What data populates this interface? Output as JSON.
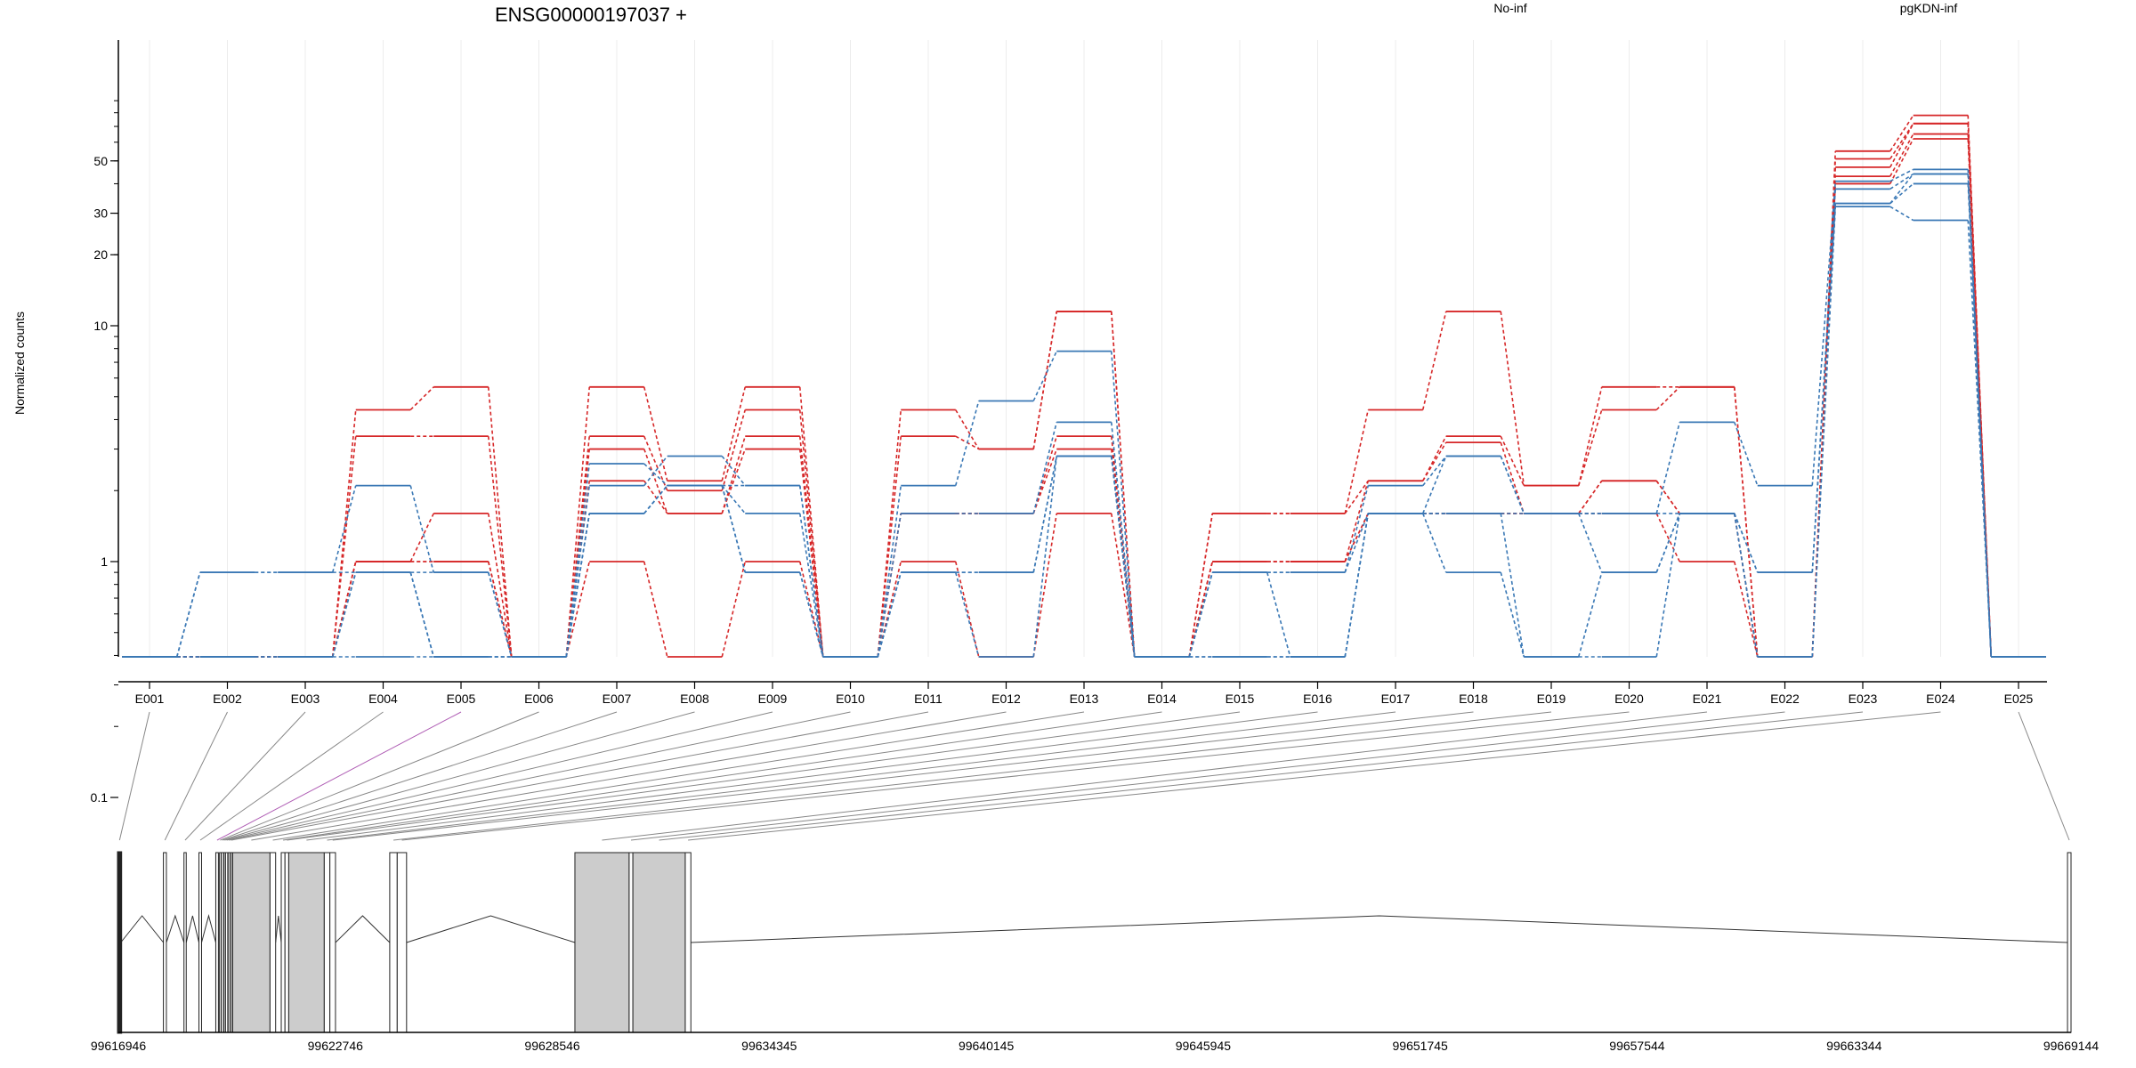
{
  "chart_data": {
    "type": "line",
    "title": "ENSG00000197037 +",
    "ylabel": "Normalized counts",
    "xlabel": "",
    "y_scale": "log",
    "y_ticks": [
      "0.1",
      "1",
      "10",
      "20",
      "30",
      "50"
    ],
    "categories": [
      "E001",
      "E002",
      "E003",
      "E004",
      "E005",
      "E006",
      "E007",
      "E008",
      "E009",
      "E010",
      "E011",
      "E012",
      "E013",
      "E014",
      "E015",
      "E016",
      "E017",
      "E018",
      "E019",
      "E020",
      "E021",
      "E022",
      "E023",
      "E024",
      "E025"
    ],
    "groups": [
      {
        "name": "No-inf",
        "color": "#d62728"
      },
      {
        "name": "pgKDN-inf",
        "color": "#3a78b5"
      }
    ],
    "series": [
      {
        "group": "No-inf",
        "values": [
          0,
          0,
          0,
          4.4,
          5.5,
          0,
          5.5,
          2.2,
          5.5,
          0,
          4.4,
          3.0,
          11.5,
          0,
          1.6,
          1.6,
          4.4,
          11.5,
          2.1,
          5.5,
          5.5,
          0,
          55,
          78,
          0
        ]
      },
      {
        "group": "No-inf",
        "values": [
          0,
          0,
          0,
          3.4,
          3.4,
          0,
          3.4,
          2.0,
          4.4,
          0,
          3.4,
          3.0,
          11.5,
          0,
          1.6,
          1.6,
          2.2,
          3.4,
          2.1,
          4.4,
          5.5,
          0,
          51,
          72,
          0
        ]
      },
      {
        "group": "No-inf",
        "values": [
          0,
          0,
          0,
          1.0,
          1.6,
          0,
          3.0,
          1.6,
          3.4,
          0,
          1.6,
          1.6,
          3.4,
          0,
          1.0,
          1.0,
          2.2,
          3.2,
          1.6,
          2.2,
          1.6,
          0,
          47,
          72,
          0
        ]
      },
      {
        "group": "No-inf",
        "values": [
          0,
          0,
          0,
          1.0,
          1.0,
          0,
          2.2,
          1.6,
          3.0,
          0,
          1.6,
          1.6,
          3.0,
          0,
          1.0,
          1.0,
          1.6,
          1.6,
          1.6,
          2.2,
          1.6,
          0,
          43,
          65,
          0
        ]
      },
      {
        "group": "No-inf",
        "values": [
          0,
          0,
          0,
          1.0,
          1.0,
          0,
          1.0,
          0,
          1.0,
          0,
          1.0,
          0,
          1.6,
          0,
          1.0,
          1.0,
          1.6,
          1.6,
          1.6,
          1.6,
          1.0,
          0,
          40,
          62,
          0
        ]
      },
      {
        "group": "pgKDN-inf",
        "values": [
          0,
          0.9,
          0.9,
          2.1,
          0.9,
          0,
          2.1,
          2.8,
          2.1,
          0,
          2.1,
          4.8,
          7.8,
          0,
          0.9,
          0.9,
          2.1,
          2.8,
          1.6,
          1.6,
          3.9,
          2.1,
          41,
          46,
          0
        ]
      },
      {
        "group": "pgKDN-inf",
        "values": [
          0,
          0.9,
          0.9,
          0.9,
          0.9,
          0,
          2.6,
          2.1,
          2.1,
          0,
          1.6,
          1.6,
          3.9,
          0,
          0.9,
          0.9,
          1.6,
          2.8,
          1.6,
          1.6,
          1.6,
          0.9,
          38,
          44,
          0
        ]
      },
      {
        "group": "pgKDN-inf",
        "values": [
          0,
          0,
          0,
          0.9,
          0,
          0,
          1.6,
          2.1,
          1.6,
          0,
          0.9,
          0.9,
          2.8,
          0,
          0.9,
          0,
          1.6,
          1.6,
          1.6,
          0.9,
          1.6,
          0.9,
          33,
          44,
          0
        ]
      },
      {
        "group": "pgKDN-inf",
        "values": [
          0,
          0,
          0,
          0.9,
          0,
          0,
          1.6,
          2.1,
          0.9,
          0,
          0.9,
          0.9,
          2.8,
          0,
          0,
          0,
          1.6,
          1.6,
          0,
          0.9,
          1.6,
          0,
          33,
          40,
          0
        ]
      },
      {
        "group": "pgKDN-inf",
        "values": [
          0,
          0,
          0,
          0,
          0,
          0,
          1.6,
          2.1,
          0.9,
          0,
          0.9,
          0,
          2.8,
          0,
          0,
          0,
          1.6,
          0.9,
          0,
          0,
          1.6,
          0,
          32,
          28,
          0
        ]
      }
    ],
    "genomic_axis": {
      "tick_labels": [
        "99616946",
        "99622746",
        "99628546",
        "99634345",
        "99640145",
        "99645945",
        "99651745",
        "99657544",
        "99663344",
        "99669144"
      ],
      "range": [
        99616946,
        99669144
      ]
    },
    "exons": [
      {
        "id": "E001",
        "start": 99616946,
        "end": 99617010
      },
      {
        "id": "E002",
        "start": 99618150,
        "end": 99618230
      },
      {
        "id": "E003",
        "start": 99618700,
        "end": 99618760
      },
      {
        "id": "E004",
        "start": 99619100,
        "end": 99619170
      },
      {
        "id": "E005",
        "start": 99619550,
        "end": 99619620
      },
      {
        "id": "E006",
        "start": 99619650,
        "end": 99619690
      },
      {
        "id": "E007",
        "start": 99619700,
        "end": 99619760
      },
      {
        "id": "E008",
        "start": 99619770,
        "end": 99619800
      },
      {
        "id": "E009",
        "start": 99619810,
        "end": 99619870
      },
      {
        "id": "E010",
        "start": 99619880,
        "end": 99619930
      },
      {
        "id": "E011",
        "start": 99619940,
        "end": 99619990
      },
      {
        "id": "E012",
        "start": 99620000,
        "end": 99621000
      },
      {
        "id": "E013",
        "start": 99621000,
        "end": 99621150
      },
      {
        "id": "E014",
        "start": 99621300,
        "end": 99621400
      },
      {
        "id": "E015",
        "start": 99621400,
        "end": 99621500
      },
      {
        "id": "E016",
        "start": 99621500,
        "end": 99622450
      },
      {
        "id": "E017",
        "start": 99622450,
        "end": 99622600
      },
      {
        "id": "E018",
        "start": 99622600,
        "end": 99622750
      },
      {
        "id": "E019",
        "start": 99624200,
        "end": 99624400
      },
      {
        "id": "E020",
        "start": 99624400,
        "end": 99624650
      },
      {
        "id": "E021",
        "start": 99629150,
        "end": 99630600
      },
      {
        "id": "E022",
        "start": 99630600,
        "end": 99630700
      },
      {
        "id": "E023",
        "start": 99630700,
        "end": 99632100
      },
      {
        "id": "E024",
        "start": 99632100,
        "end": 99632250
      },
      {
        "id": "E025",
        "start": 99669050,
        "end": 99669144
      }
    ],
    "grid": true
  }
}
